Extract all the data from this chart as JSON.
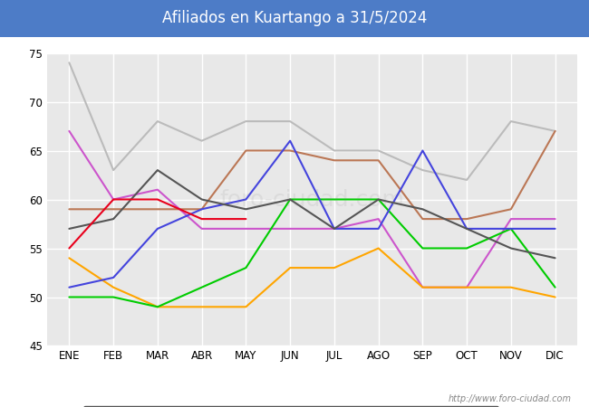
{
  "title": "Afiliados en Kuartango a 31/5/2024",
  "title_color": "white",
  "title_bg": "#4d7cc7",
  "ylim": [
    45,
    75
  ],
  "yticks": [
    45,
    50,
    55,
    60,
    65,
    70,
    75
  ],
  "months": [
    "ENE",
    "FEB",
    "MAR",
    "ABR",
    "MAY",
    "JUN",
    "JUL",
    "AGO",
    "SEP",
    "OCT",
    "NOV",
    "DIC"
  ],
  "series": {
    "2024": {
      "color": "#e8001c",
      "data": [
        55,
        60,
        60,
        58,
        58,
        null,
        null,
        null,
        null,
        null,
        null,
        null
      ]
    },
    "2023": {
      "color": "#555555",
      "data": [
        57,
        58,
        63,
        60,
        59,
        60,
        57,
        60,
        59,
        57,
        55,
        54
      ]
    },
    "2022": {
      "color": "#4444dd",
      "data": [
        51,
        52,
        57,
        59,
        60,
        66,
        57,
        57,
        65,
        57,
        57,
        57
      ]
    },
    "2021": {
      "color": "#00cc00",
      "data": [
        50,
        50,
        49,
        51,
        53,
        60,
        60,
        60,
        55,
        55,
        57,
        51
      ]
    },
    "2020": {
      "color": "#ffa500",
      "data": [
        54,
        51,
        49,
        49,
        49,
        53,
        53,
        55,
        51,
        51,
        51,
        50
      ]
    },
    "2019": {
      "color": "#cc55cc",
      "data": [
        67,
        60,
        61,
        57,
        57,
        57,
        57,
        58,
        51,
        51,
        58,
        58
      ]
    },
    "2018": {
      "color": "#bb7755",
      "data": [
        59,
        59,
        59,
        59,
        65,
        65,
        64,
        64,
        58,
        58,
        59,
        67
      ]
    },
    "2017": {
      "color": "#bbbbbb",
      "data": [
        74,
        63,
        68,
        66,
        68,
        68,
        65,
        65,
        63,
        62,
        68,
        67
      ]
    }
  },
  "watermark": "http://www.foro-ciudad.com",
  "plot_bg": "#e8e8e8",
  "fig_bg": "white"
}
